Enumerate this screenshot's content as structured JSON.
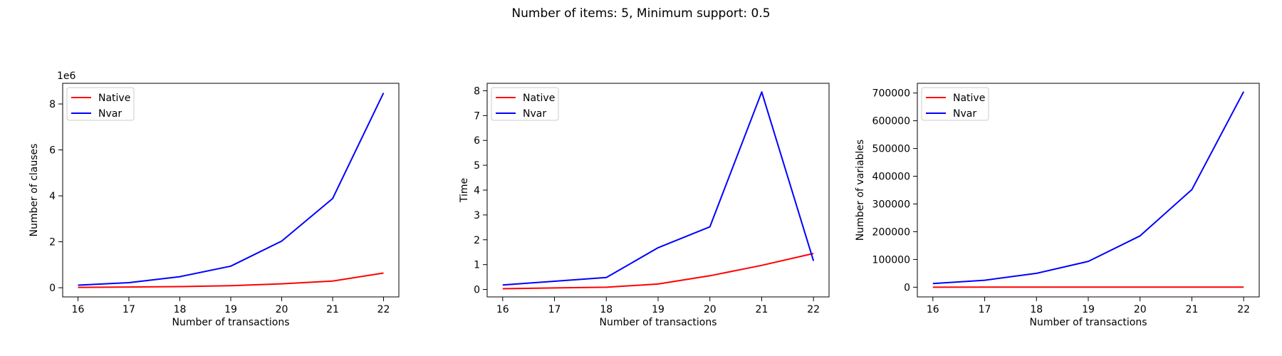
{
  "suptitle": "Number of items: 5, Minimum support: 0.5",
  "colors": {
    "native": "#ff0000",
    "nvar": "#0000ff"
  },
  "chart_data": [
    {
      "type": "line",
      "x": [
        16,
        17,
        18,
        19,
        20,
        21,
        22
      ],
      "xlabel": "Number of transactions",
      "ylabel": "Number of clauses",
      "offset_text": "1e6",
      "xlim": [
        15.7,
        22.3
      ],
      "ylim": [
        -400000,
        8900000
      ],
      "yticks": [
        0,
        2000000,
        4000000,
        6000000,
        8000000
      ],
      "ytick_labels": [
        "0",
        "2",
        "4",
        "6",
        "8"
      ],
      "legend": "top-left",
      "series": [
        {
          "name": "Native",
          "color": "#ff0000",
          "values": [
            15000,
            30000,
            50000,
            90000,
            170000,
            290000,
            640000
          ]
        },
        {
          "name": "Nvar",
          "color": "#0000ff",
          "values": [
            110000,
            220000,
            480000,
            940000,
            2030000,
            3880000,
            8480000
          ]
        }
      ]
    },
    {
      "type": "line",
      "x": [
        16,
        17,
        18,
        19,
        20,
        21,
        22
      ],
      "xlabel": "Number of transactions",
      "ylabel": "Time",
      "xlim": [
        15.7,
        22.3
      ],
      "ylim": [
        -0.3,
        8.3
      ],
      "yticks": [
        0,
        1,
        2,
        3,
        4,
        5,
        6,
        7,
        8
      ],
      "ytick_labels": [
        "0",
        "1",
        "2",
        "3",
        "4",
        "5",
        "6",
        "7",
        "8"
      ],
      "legend": "top-left",
      "series": [
        {
          "name": "Native",
          "color": "#ff0000",
          "values": [
            0.03,
            0.06,
            0.09,
            0.22,
            0.55,
            0.97,
            1.45
          ]
        },
        {
          "name": "Nvar",
          "color": "#0000ff",
          "values": [
            0.18,
            0.33,
            0.48,
            1.68,
            2.52,
            7.95,
            1.15
          ]
        }
      ]
    },
    {
      "type": "line",
      "x": [
        16,
        17,
        18,
        19,
        20,
        21,
        22
      ],
      "xlabel": "Number of transactions",
      "ylabel": "Number of variables",
      "xlim": [
        15.7,
        22.3
      ],
      "ylim": [
        -35000,
        735000
      ],
      "yticks": [
        0,
        100000,
        200000,
        300000,
        400000,
        500000,
        600000,
        700000
      ],
      "ytick_labels": [
        "0",
        "100000",
        "200000",
        "300000",
        "400000",
        "500000",
        "600000",
        "700000"
      ],
      "legend": "top-left",
      "series": [
        {
          "name": "Native",
          "color": "#ff0000",
          "values": [
            30,
            40,
            50,
            60,
            70,
            80,
            90
          ]
        },
        {
          "name": "Nvar",
          "color": "#0000ff",
          "values": [
            13000,
            25000,
            50000,
            93000,
            185000,
            352000,
            705000
          ]
        }
      ]
    }
  ]
}
